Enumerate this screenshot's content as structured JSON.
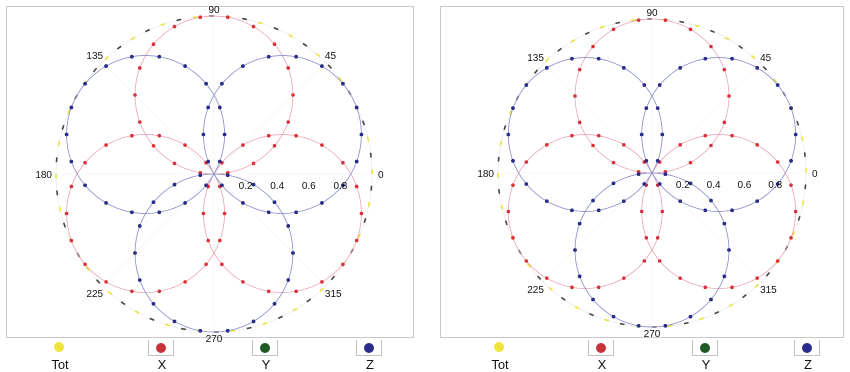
{
  "chart_data": [
    {
      "type": "polar-scatter",
      "angle_ticks": [
        "0",
        "45",
        "90",
        "135",
        "180",
        "225",
        "270",
        "315"
      ],
      "radial_ticks": [
        "0.2",
        "0.4",
        "0.6",
        "0.8"
      ],
      "rlim": [
        0,
        1
      ],
      "legend_placement": "bottom",
      "series": [
        {
          "name": "Tot",
          "color": "#e8e23a",
          "curve": "r = 1",
          "points_count": 60
        },
        {
          "name": "X",
          "color": "#d9303a",
          "curve": "r = |0.5 cos(3(theta - 90))| shown as three petals at 90, 210, 330 deg",
          "radius": 0.5,
          "petal_angles": [
            90,
            210,
            330
          ]
        },
        {
          "name": "Y",
          "color": "#1a4d1a",
          "curve": "three petals at 150, 270, 30 deg",
          "radius": 0.5,
          "petal_angles": [
            150,
            270,
            30
          ]
        },
        {
          "name": "Z",
          "color": "#2a2a8f",
          "curve": "three petals at 30, 150, 270 deg",
          "radius": 0.5,
          "petal_angles": [
            30,
            150,
            270
          ]
        }
      ]
    },
    {
      "type": "polar-scatter",
      "angle_ticks": [
        "0",
        "45",
        "90",
        "135",
        "180",
        "225",
        "270",
        "315"
      ],
      "radial_ticks": [
        "0.2",
        "0.4",
        "0.6",
        "0.8"
      ],
      "rlim": [
        0,
        1
      ],
      "legend_placement": "bottom",
      "series": [
        {
          "name": "Tot",
          "color": "#e8e23a",
          "curve": "r = 1",
          "points_count": 60
        },
        {
          "name": "X",
          "color": "#d9303a",
          "curve": "three petals at 90, 210, 330 deg",
          "radius": 0.5,
          "petal_angles": [
            90,
            210,
            330
          ]
        },
        {
          "name": "Y",
          "color": "#1a4d1a",
          "curve": "three petals at 150, 270, 30 deg",
          "radius": 0.5,
          "petal_angles": [
            150,
            270,
            30
          ]
        },
        {
          "name": "Z",
          "color": "#2a2a8f",
          "curve": "three petals at 30, 150, 270 deg",
          "radius": 0.5,
          "petal_angles": [
            30,
            150,
            270
          ]
        }
      ]
    }
  ],
  "legend": [
    {
      "label": "Tot",
      "color": "#f0e43a"
    },
    {
      "label": "X",
      "color": "#c8333a"
    },
    {
      "label": "Y",
      "color": "#1d5a25"
    },
    {
      "label": "Z",
      "color": "#2b2b8c"
    }
  ]
}
